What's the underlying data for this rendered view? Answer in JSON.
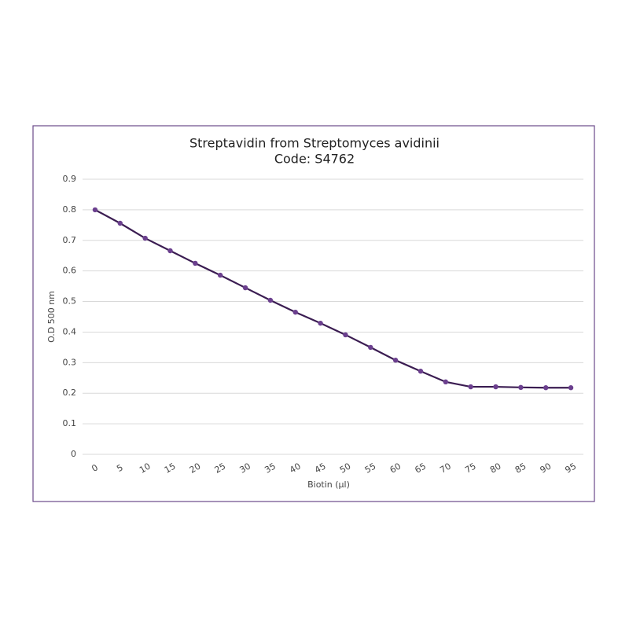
{
  "chart_data": {
    "type": "line",
    "title": "Streptavidin from Streptomyces avidinii",
    "subtitle": "Code: S4762",
    "x_label": "Biotin (µl)",
    "y_label": "O.D 500 nm",
    "x": [
      0,
      5,
      10,
      15,
      20,
      25,
      30,
      35,
      40,
      45,
      50,
      55,
      60,
      65,
      70,
      75,
      80,
      85,
      90,
      95
    ],
    "xlim": [
      -2.5,
      97.5
    ],
    "series": [
      {
        "color": "#3b1d52",
        "marker_color": "#6b3f8e",
        "values": [
          0.8,
          0.756,
          0.707,
          0.666,
          0.625,
          0.586,
          0.545,
          0.504,
          0.465,
          0.429,
          0.391,
          0.35,
          0.308,
          0.272,
          0.237,
          0.221,
          0.221,
          0.219,
          0.218,
          0.218
        ]
      }
    ],
    "ylim": [
      0,
      0.9
    ],
    "yticks": [
      0,
      0.1,
      0.2,
      0.3,
      0.4,
      0.5,
      0.6,
      0.7,
      0.8,
      0.9
    ],
    "grid": true
  }
}
